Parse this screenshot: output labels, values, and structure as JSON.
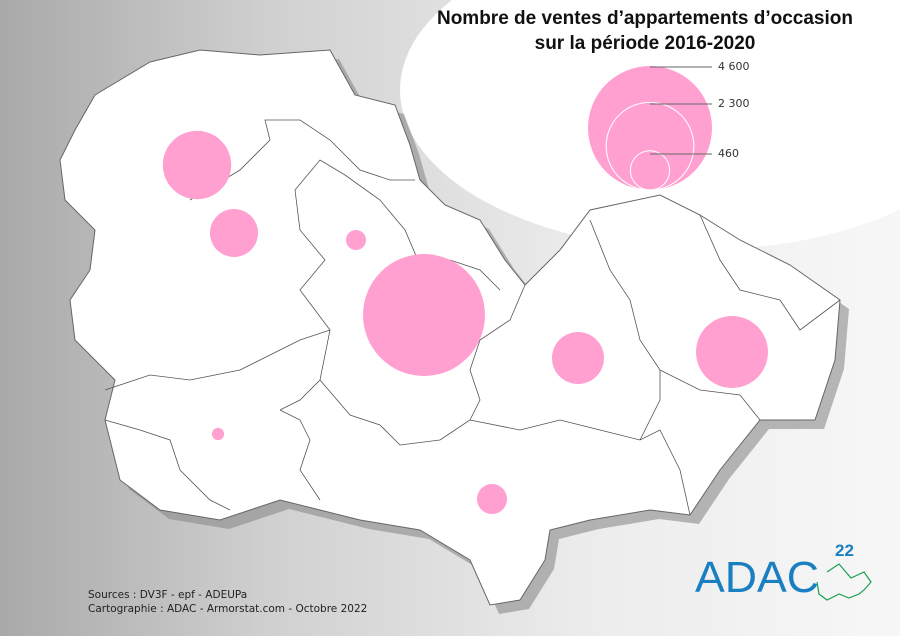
{
  "title_line1": "Nombre de ventes d’appartements d’occasion",
  "title_line2": "sur la période 2016-2020",
  "legend": {
    "values": [
      4600,
      2300,
      460
    ],
    "labels": [
      "4 600",
      "2 300",
      "460"
    ]
  },
  "colors": {
    "circle": "#ffa0d0",
    "map_fill": "#ffffff",
    "border": "#555555",
    "logo_blue": "#1a7fc1",
    "logo_green": "#1aa050"
  },
  "circles": [
    {
      "zone": "north-west",
      "value": 1400
    },
    {
      "zone": "west",
      "value": 690
    },
    {
      "zone": "center-north",
      "value": 120
    },
    {
      "zone": "center",
      "value": 4450
    },
    {
      "zone": "east-center",
      "value": 810
    },
    {
      "zone": "east",
      "value": 1550
    },
    {
      "zone": "south-west",
      "value": 45
    },
    {
      "zone": "south",
      "value": 270
    }
  ],
  "sources": "Sources : DV3F - epf - ADEUPa",
  "credits": "Cartographie : ADAC - Armorstat.com - Octobre 2022",
  "logo": {
    "text": "ADAC",
    "number": "22"
  }
}
